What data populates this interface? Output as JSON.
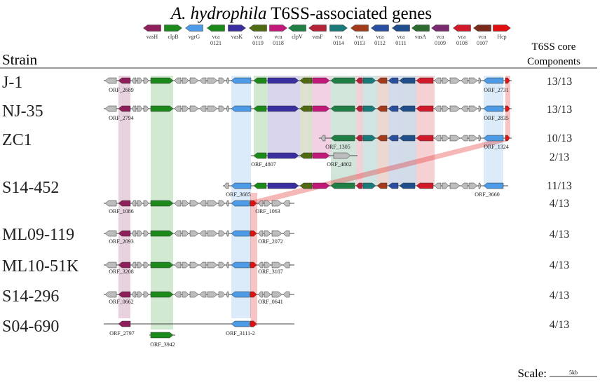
{
  "title": {
    "species": "A. hydrophila",
    "rest": " T6SS-associated genes"
  },
  "legend": [
    {
      "label": [
        "vasH"
      ],
      "color": "#8e1f5a",
      "dir": "left"
    },
    {
      "label": [
        "clpB"
      ],
      "color": "#1b8a1b",
      "dir": "right"
    },
    {
      "label": [
        "vgrG"
      ],
      "color": "#4d9be6",
      "dir": "left"
    },
    {
      "label": [
        "vca",
        "0121"
      ],
      "color": "#1b8a1b",
      "dir": "left"
    },
    {
      "label": [
        "vasK"
      ],
      "color": "#3a2f9e",
      "dir": "right"
    },
    {
      "label": [
        "vca",
        "0119"
      ],
      "color": "#4f6a12",
      "dir": "left"
    },
    {
      "label": [
        "vca",
        "0118"
      ],
      "color": "#c2187a",
      "dir": "right"
    },
    {
      "label": [
        "clpV"
      ],
      "color": "#1f7f44",
      "dir": "left"
    },
    {
      "label": [
        "vasF"
      ],
      "color": "#b5233a",
      "dir": "left"
    },
    {
      "label": [
        "vca",
        "0114"
      ],
      "color": "#1a7a7a",
      "dir": "right"
    },
    {
      "label": [
        "vca",
        "0113"
      ],
      "color": "#a33a1a",
      "dir": "left"
    },
    {
      "label": [
        "vca",
        "0112"
      ],
      "color": "#2a4fa0",
      "dir": "left"
    },
    {
      "label": [
        "vca",
        "0111"
      ],
      "color": "#1e4f8c",
      "dir": "left"
    },
    {
      "label": [
        "vasA"
      ],
      "color": "#2d6a2d",
      "dir": "left"
    },
    {
      "label": [
        "vca",
        "0109"
      ],
      "color": "#7a2a6e",
      "dir": "left"
    },
    {
      "label": [
        "vca",
        "0108"
      ],
      "color": "#d01a2a",
      "dir": "left"
    },
    {
      "label": [
        "vca",
        "0107"
      ],
      "color": "#7a2a1a",
      "dir": "left"
    },
    {
      "label": [
        "Hcp"
      ],
      "color": "#e01010",
      "dir": "right"
    }
  ],
  "headers": {
    "strain": "Strain",
    "components": [
      "T6SS core",
      "Components"
    ]
  },
  "strains": [
    {
      "name": "J-1",
      "count": "13/13",
      "orfs": [
        "ORF_2689",
        "ORF_2731"
      ]
    },
    {
      "name": "NJ-35",
      "count": "13/13",
      "orfs": [
        "ORF_2794",
        "ORF_2835"
      ]
    },
    {
      "name": "ZC1",
      "count": "10/13",
      "count2": "2/13",
      "orfs": [
        "ORF_1305",
        "ORF_1324",
        "ORF_4807",
        "ORF_4802"
      ]
    },
    {
      "name": "S14-452",
      "count": "11/13",
      "count2": "4/13",
      "orfs": [
        "ORF_3685",
        "ORF_3660",
        "ORF_1086",
        "ORF_1063"
      ]
    },
    {
      "name": "ML09-119",
      "count": "4/13",
      "orfs": [
        "ORF_2093",
        "ORF_2072"
      ]
    },
    {
      "name": "ML10-51K",
      "count": "4/13",
      "orfs": [
        "ORF_3208",
        "ORF_3187"
      ]
    },
    {
      "name": "S14-296",
      "count": "4/13",
      "orfs": [
        "ORF_0662",
        "ORF_0641"
      ]
    },
    {
      "name": "S04-690",
      "count": "4/13",
      "orfs": [
        "ORF_2797",
        "ORF_3942",
        "ORF_3111-2"
      ]
    }
  ],
  "scale": {
    "label": "Scale:",
    "bar": "5kb"
  }
}
